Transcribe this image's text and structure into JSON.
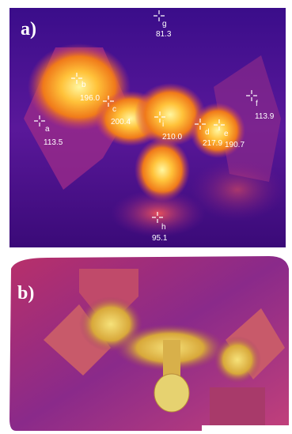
{
  "panel_a": {
    "label": "a)",
    "points": [
      {
        "label": "a",
        "value": "113.5"
      },
      {
        "label": "b",
        "value": "196.0"
      },
      {
        "label": "c",
        "value": "200.4"
      },
      {
        "label": "d",
        "value": "217.9"
      },
      {
        "label": "e",
        "value": "190.7"
      },
      {
        "label": "f",
        "value": "113.9"
      },
      {
        "label": "g",
        "value": "81.3"
      },
      {
        "label": "h",
        "value": "95.1"
      },
      {
        "label": "i",
        "value": "210.0"
      }
    ]
  },
  "panel_b": {
    "label": "b)"
  }
}
